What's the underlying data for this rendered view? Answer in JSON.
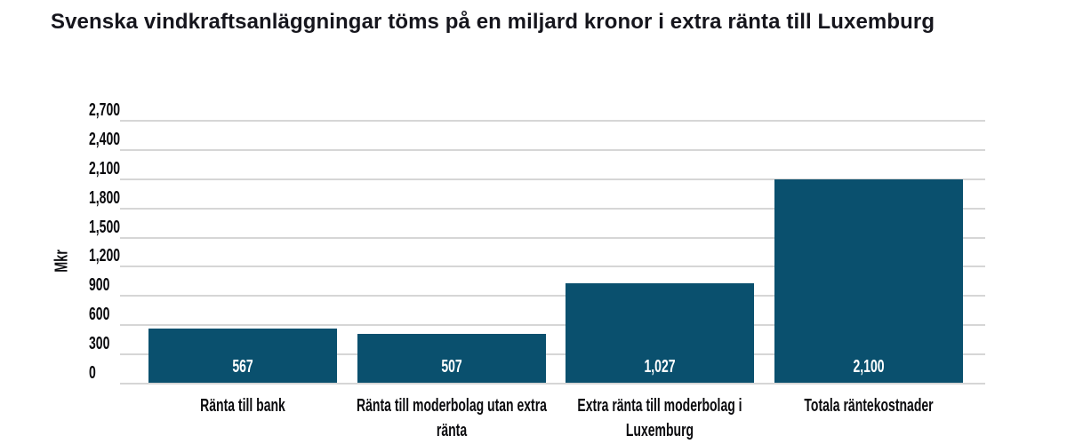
{
  "title": "Svenska vindkraftsanläggningar töms på en miljard kronor i extra ränta till Luxemburg",
  "chart_data": {
    "type": "bar",
    "title": "Svenska vindkraftsanläggningar töms på en miljard kronor i extra ränta till Luxemburg",
    "xlabel": "",
    "ylabel": "Mkr",
    "ylim": [
      0,
      2700
    ],
    "yticks": [
      0,
      300,
      600,
      900,
      1200,
      1500,
      1800,
      2100,
      2400,
      2700
    ],
    "ytick_labels": [
      "0",
      "300",
      "600",
      "900",
      "1,200",
      "1,500",
      "1,800",
      "2,100",
      "2,400",
      "2,700"
    ],
    "categories": [
      "Ränta till bank",
      "Ränta till moderbolag utan extra ränta",
      "Extra ränta till moderbolag i Luxemburg",
      "Totala räntekostnader"
    ],
    "values": [
      567,
      507,
      1027,
      2100
    ],
    "value_labels": [
      "567",
      "507",
      "1,027",
      "2,100"
    ],
    "grid": true,
    "legend": "none",
    "colors": {
      "bar": "#0a506e",
      "gridline": "#d6d6d6",
      "title_text": "#16161d",
      "axis_text": "#0b0b0e",
      "value_text": "#ffffff",
      "background": "#ffffff"
    }
  }
}
